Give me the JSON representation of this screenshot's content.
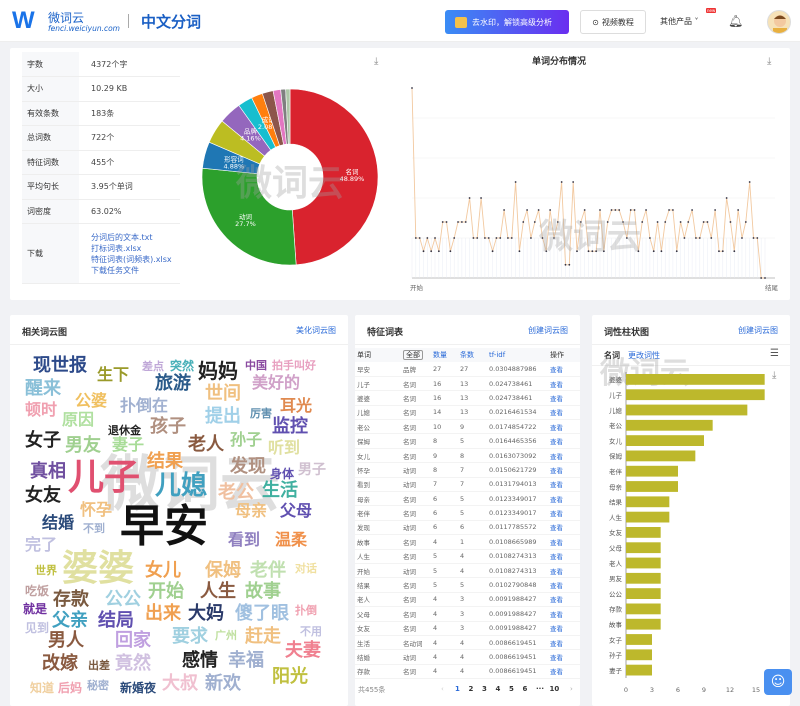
{
  "header": {
    "logo_letter": "W",
    "logo_name": "微词云",
    "logo_url": "fenci.weiciyun.com",
    "title": "中文分词",
    "promo_label": "去水印，解锁高级分析",
    "video_label": "视频教程",
    "other_products": "其他产品",
    "new_badge": "new"
  },
  "stats": [
    {
      "key": "字数",
      "value": "4372个字"
    },
    {
      "key": "大小",
      "value": "10.29 KB"
    },
    {
      "key": "有效条数",
      "value": "183条"
    },
    {
      "key": "总词数",
      "value": "722个"
    },
    {
      "key": "特征词数",
      "value": "455个"
    },
    {
      "key": "平均句长",
      "value": "3.95个单词"
    },
    {
      "key": "词密度",
      "value": "63.02%"
    }
  ],
  "downloads": {
    "key": "下载",
    "links": [
      "分词后的文本.txt",
      "打标词表.xlsx",
      "特征词表(词频表).xlsx",
      "下载任务文件"
    ]
  },
  "watermark": "微词云",
  "chart_data": [
    {
      "type": "pie",
      "title": "",
      "slices": [
        {
          "label": "名词",
          "value": 48.89,
          "color": "#d9232e"
        },
        {
          "label": "动词",
          "value": 27.7,
          "color": "#2ca02c"
        },
        {
          "label": "形容词",
          "value": 4.88,
          "color": "#1f77b4"
        },
        {
          "label": "",
          "value": 4.5,
          "color": "#bcbd22"
        },
        {
          "label": "品牌",
          "value": 4.16,
          "color": "#9467bd"
        },
        {
          "label": "",
          "value": 2.7,
          "color": "#17becf"
        },
        {
          "label": "成语",
          "value": 2.08,
          "color": "#ff7f0e"
        },
        {
          "label": "",
          "value": 2.0,
          "color": "#8c564b"
        },
        {
          "label": "",
          "value": 1.4,
          "color": "#e377c2"
        },
        {
          "label": "",
          "value": 0.9,
          "color": "#7f7f7f"
        },
        {
          "label": "",
          "value": 0.79,
          "color": "#aec7a8"
        }
      ]
    },
    {
      "type": "line",
      "title": "单词分布情况",
      "xlabels": [
        "开始",
        "结尾"
      ],
      "ylim": [
        0,
        5
      ],
      "values": [
        4.75,
        1,
        1,
        0.67,
        1,
        0.67,
        1,
        0.67,
        1.4,
        1.4,
        0.67,
        1,
        1.4,
        1.4,
        1.4,
        2,
        1,
        1,
        2,
        1,
        1,
        0.67,
        1,
        1,
        1.7,
        1,
        1,
        2.4,
        0.67,
        1.4,
        1.7,
        1,
        1.4,
        1.7,
        1,
        0.67,
        1.7,
        1,
        1.4,
        2.4,
        0.33,
        0.33,
        2.4,
        0.67,
        1.4,
        1.7,
        0.67,
        0.67,
        0.67,
        1.7,
        0.67,
        1.4,
        1.7,
        1.7,
        1.7,
        1.4,
        1,
        1.7,
        1.7,
        0.67,
        1.4,
        1.7,
        1,
        0.67,
        1.4,
        0.67,
        1.4,
        1.7,
        1.7,
        0.67,
        1.4,
        1,
        1.4,
        1.7,
        1,
        1,
        1.4,
        1.4,
        1,
        1.7,
        0.67,
        0.67,
        2,
        1.4,
        0.67,
        1.7,
        1,
        1.4,
        2.4,
        1,
        1,
        0,
        0
      ]
    },
    {
      "type": "bar",
      "orientation": "horizontal",
      "title": "词性柱状图",
      "category": "名词",
      "xlim": [
        0,
        18
      ],
      "xticks": [
        "0",
        "3",
        "6",
        "9",
        "12",
        "15"
      ],
      "color": "#bdb82c",
      "categories": [
        "婆婆",
        "儿子",
        "儿媳",
        "老公",
        "女儿",
        "保姆",
        "老伴",
        "母亲",
        "结果",
        "人生",
        "女友",
        "父母",
        "老人",
        "男友",
        "公公",
        "存款",
        "故事",
        "女子",
        "孙子",
        "妻子"
      ],
      "values": [
        16,
        16,
        14,
        10,
        9,
        8,
        6,
        6,
        5,
        5,
        4,
        4,
        4,
        4,
        4,
        4,
        4,
        3,
        3,
        3
      ]
    }
  ],
  "wordcloud": {
    "title": "相关词云图",
    "link": "美化词云图",
    "words": [
      {
        "t": "现世报",
        "c": "#2d4a8a"
      },
      {
        "t": "生下",
        "c": "#9a9a2a"
      },
      {
        "t": "差点",
        "c": "#c0a8d8"
      },
      {
        "t": "突然",
        "c": "#48b0b8"
      },
      {
        "t": "妈妈",
        "c": "#222"
      },
      {
        "t": "中国",
        "c": "#8a4aa0"
      },
      {
        "t": "拍手叫好",
        "c": "#e8a0c0"
      },
      {
        "t": "醒来",
        "c": "#8ac0d8"
      },
      {
        "t": "旅游",
        "c": "#2a5a8a"
      },
      {
        "t": "美好的",
        "c": "#d0a0c8"
      },
      {
        "t": "世间",
        "c": "#f0c080"
      },
      {
        "t": "公婆",
        "c": "#f0c060"
      },
      {
        "t": "顿时",
        "c": "#f0a0b0"
      },
      {
        "t": "扑倒在",
        "c": "#a0b0d0"
      },
      {
        "t": "耳光",
        "c": "#e08a50"
      },
      {
        "t": "原因",
        "c": "#b0e0a0"
      },
      {
        "t": "提出",
        "c": "#a0d0e8"
      },
      {
        "t": "厉害",
        "c": "#6090b0"
      },
      {
        "t": "孩子",
        "c": "#b09080"
      },
      {
        "t": "监控",
        "c": "#6050b0"
      },
      {
        "t": "退休金",
        "c": "#222"
      },
      {
        "t": "女子",
        "c": "#222"
      },
      {
        "t": "男友",
        "c": "#a0d090"
      },
      {
        "t": "妻子",
        "c": "#a8dc98"
      },
      {
        "t": "老人",
        "c": "#8a5a40"
      },
      {
        "t": "孙子",
        "c": "#a0d090"
      },
      {
        "t": "听到",
        "c": "#e0e0a0"
      },
      {
        "t": "结果",
        "c": "#f0a050"
      },
      {
        "t": "真相",
        "c": "#7050a0"
      },
      {
        "t": "儿子",
        "c": "#e05070"
      },
      {
        "t": "儿媳",
        "c": "#40a0c0"
      },
      {
        "t": "发现",
        "c": "#b09080"
      },
      {
        "t": "身体",
        "c": "#6050b0"
      },
      {
        "t": "男子",
        "c": "#d0c0d0"
      },
      {
        "t": "老公",
        "c": "#f0c0a0"
      },
      {
        "t": "生活",
        "c": "#40b0a0"
      },
      {
        "t": "女友",
        "c": "#222"
      },
      {
        "t": "早安",
        "c": "#111"
      },
      {
        "t": "怀孕",
        "c": "#f0c080"
      },
      {
        "t": "母亲",
        "c": "#f0c080"
      },
      {
        "t": "父母",
        "c": "#6050b0"
      },
      {
        "t": "结婚",
        "c": "#2a4a7a"
      },
      {
        "t": "完了",
        "c": "#c0c0e0"
      },
      {
        "t": "婆婆",
        "c": "#e0e0a0"
      },
      {
        "t": "看到",
        "c": "#9080c0"
      },
      {
        "t": "温柔",
        "c": "#f0904a"
      },
      {
        "t": "女儿",
        "c": "#f0a050"
      },
      {
        "t": "保姆",
        "c": "#f0c080"
      },
      {
        "t": "老伴",
        "c": "#c0e0b0"
      },
      {
        "t": "对话",
        "c": "#f0e0a0"
      },
      {
        "t": "世界",
        "c": "#c0c040"
      },
      {
        "t": "吃饭",
        "c": "#c0a0a0"
      },
      {
        "t": "存款",
        "c": "#7a5a40"
      },
      {
        "t": "公公",
        "c": "#a0d0e0"
      },
      {
        "t": "开始",
        "c": "#a0d090"
      },
      {
        "t": "人生",
        "c": "#8a5a40"
      },
      {
        "t": "故事",
        "c": "#a0d090"
      },
      {
        "t": "就是",
        "c": "#7030a0"
      },
      {
        "t": "父亲",
        "c": "#40a0c0"
      },
      {
        "t": "结局",
        "c": "#6050b0"
      },
      {
        "t": "出来",
        "c": "#f0a050"
      },
      {
        "t": "大妈",
        "c": "#2a3a6a"
      },
      {
        "t": "傻了眼",
        "c": "#a0c0e0"
      },
      {
        "t": "扑倒",
        "c": "#f0a0b0"
      },
      {
        "t": "见到",
        "c": "#c0c0e0"
      },
      {
        "t": "男人",
        "c": "#8a5a40"
      },
      {
        "t": "回家",
        "c": "#c0a0e0"
      },
      {
        "t": "要求",
        "c": "#a0d0e0"
      },
      {
        "t": "广州",
        "c": "#c0e0a0"
      },
      {
        "t": "赶走",
        "c": "#f0c080"
      },
      {
        "t": "夫妻",
        "c": "#f08090"
      },
      {
        "t": "改嫁",
        "c": "#8a5a40"
      },
      {
        "t": "出差",
        "c": "#7a5a40"
      },
      {
        "t": "竟然",
        "c": "#d0c0e0"
      },
      {
        "t": "感情",
        "c": "#222"
      },
      {
        "t": "幸福",
        "c": "#a0b0d0"
      },
      {
        "t": "阳光",
        "c": "#c0c040"
      },
      {
        "t": "知道",
        "c": "#f0d0a0"
      },
      {
        "t": "后妈",
        "c": "#f0a0b0"
      },
      {
        "t": "秘密",
        "c": "#a0b0d0"
      },
      {
        "t": "新婚夜",
        "c": "#2a4a7a"
      },
      {
        "t": "大叔",
        "c": "#f0c0d0"
      },
      {
        "t": "新欢",
        "c": "#a0b0d0"
      },
      {
        "t": "不到",
        "c": "#a0b0d0"
      },
      {
        "t": "不用",
        "c": "#c0c0e0"
      }
    ]
  },
  "features": {
    "title": "特征词表",
    "link": "创建词云图",
    "headers": [
      "单词",
      "全部",
      "数量",
      "条数",
      "tf-idf",
      "操作"
    ],
    "rows": [
      [
        "早安",
        "品牌",
        "27",
        "27",
        "0.0304887986"
      ],
      [
        "儿子",
        "名词",
        "16",
        "13",
        "0.024738461"
      ],
      [
        "婆婆",
        "名词",
        "16",
        "13",
        "0.024738461"
      ],
      [
        "儿媳",
        "名词",
        "14",
        "13",
        "0.0216461534"
      ],
      [
        "老公",
        "名词",
        "10",
        "9",
        "0.0174854722"
      ],
      [
        "保姆",
        "名词",
        "8",
        "5",
        "0.0164465356"
      ],
      [
        "女儿",
        "名词",
        "9",
        "8",
        "0.0163073092"
      ],
      [
        "怀孕",
        "动词",
        "8",
        "7",
        "0.0150621729"
      ],
      [
        "看到",
        "动词",
        "7",
        "7",
        "0.0131794013"
      ],
      [
        "母亲",
        "名词",
        "6",
        "5",
        "0.0123349017"
      ],
      [
        "老伴",
        "名词",
        "6",
        "5",
        "0.0123349017"
      ],
      [
        "发现",
        "动词",
        "6",
        "6",
        "0.0117785572"
      ],
      [
        "故事",
        "名词",
        "4",
        "1",
        "0.0108665989"
      ],
      [
        "人生",
        "名词",
        "5",
        "4",
        "0.0108274313"
      ],
      [
        "开始",
        "动词",
        "5",
        "4",
        "0.0108274313"
      ],
      [
        "结果",
        "名词",
        "5",
        "5",
        "0.0102790848"
      ],
      [
        "老人",
        "名词",
        "4",
        "3",
        "0.0091988427"
      ],
      [
        "父母",
        "名词",
        "4",
        "3",
        "0.0091988427"
      ],
      [
        "女友",
        "名词",
        "4",
        "3",
        "0.0091988427"
      ],
      [
        "生活",
        "名动词",
        "4",
        "4",
        "0.0086619451"
      ],
      [
        "结婚",
        "动词",
        "4",
        "4",
        "0.0086619451"
      ],
      [
        "存款",
        "名词",
        "4",
        "4",
        "0.0086619451"
      ]
    ],
    "action": "查看",
    "total": "共455条",
    "pages": [
      "1",
      "2",
      "3",
      "4",
      "5",
      "6",
      "···",
      "10"
    ]
  },
  "bars": {
    "title": "词性柱状图",
    "link": "创建词云图",
    "pos": "名词",
    "change": "更改词性"
  }
}
